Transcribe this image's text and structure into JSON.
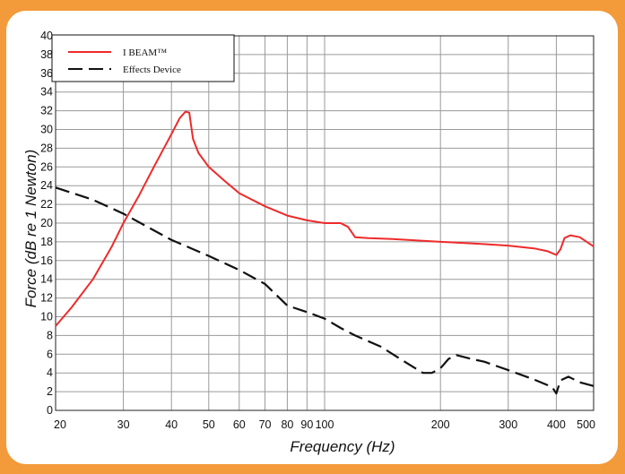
{
  "chart_data": {
    "type": "line",
    "xlabel": "Frequency (Hz)",
    "ylabel": "Force (dB re 1 Newton)",
    "xscale": "log",
    "xlim": [
      20,
      500
    ],
    "ylim": [
      0,
      40
    ],
    "grid": true,
    "legend_position": "top-left",
    "x_tick_values": [
      20,
      30,
      40,
      50,
      60,
      70,
      80,
      90,
      100,
      200,
      300,
      400,
      500
    ],
    "x_tick_labels": [
      "20",
      "30",
      "40",
      "50",
      "60",
      "70",
      "80",
      "90",
      "100",
      "200",
      "300",
      "400",
      "500"
    ],
    "y_tick_values": [
      0,
      2,
      4,
      6,
      8,
      10,
      12,
      14,
      16,
      18,
      20,
      22,
      24,
      26,
      28,
      30,
      32,
      34,
      36,
      38,
      40
    ],
    "y_tick_labels": [
      "0",
      "2",
      "4",
      "6",
      "8",
      "10",
      "12",
      "14",
      "16",
      "18",
      "20",
      "22",
      "24",
      "26",
      "28",
      "30",
      "32",
      "34",
      "36",
      "38",
      "40"
    ],
    "series": [
      {
        "name": "I BEAM™",
        "color": "#ee2a2a",
        "style": "solid",
        "x": [
          20,
          22,
          25,
          28,
          30,
          33,
          36,
          40,
          42,
          43.5,
          44.5,
          45.5,
          47,
          50,
          55,
          60,
          70,
          80,
          90,
          100,
          110,
          115,
          120,
          130,
          150,
          200,
          250,
          300,
          350,
          380,
          400,
          410,
          420,
          435,
          460,
          500
        ],
        "y": [
          9,
          11,
          14,
          17.5,
          20,
          23,
          26,
          29.5,
          31.2,
          31.9,
          31.8,
          29,
          27.5,
          26,
          24.5,
          23.2,
          21.8,
          20.8,
          20.3,
          20,
          20,
          19.6,
          18.5,
          18.4,
          18.3,
          18,
          17.8,
          17.6,
          17.3,
          17,
          16.6,
          17.2,
          18.4,
          18.7,
          18.5,
          17.5
        ]
      },
      {
        "name": "Effects Device",
        "color": "#111111",
        "style": "dashed",
        "x": [
          20,
          25,
          30,
          35,
          40,
          50,
          60,
          70,
          80,
          90,
          100,
          110,
          120,
          140,
          160,
          180,
          190,
          200,
          210,
          220,
          240,
          260,
          300,
          350,
          390,
          400,
          410,
          430,
          460,
          500
        ],
        "y": [
          23.8,
          22.5,
          21,
          19.5,
          18.2,
          16.5,
          15,
          13.5,
          11.2,
          10.5,
          9.8,
          8.8,
          8,
          6.8,
          5.3,
          4,
          4,
          4.5,
          5.5,
          5.9,
          5.5,
          5.2,
          4.3,
          3.3,
          2.5,
          1.8,
          3.2,
          3.6,
          3,
          2.6
        ]
      }
    ]
  }
}
